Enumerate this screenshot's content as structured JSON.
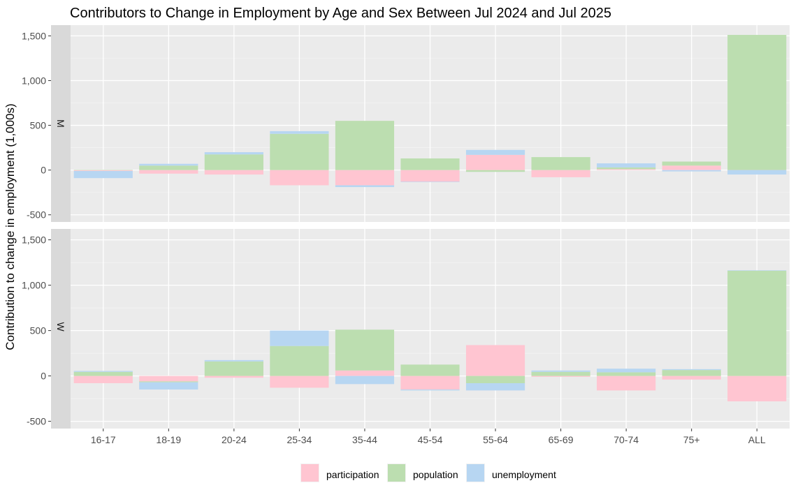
{
  "chart_data": {
    "type": "bar",
    "stacked": true,
    "title": "Contributors to Change in Employment by Age and Sex Between Jul 2024 and Jul 2025",
    "ylabel": "Contribution to change in employment (1,000s)",
    "xlabel": "",
    "categories": [
      "16-17",
      "18-19",
      "20-24",
      "25-34",
      "35-44",
      "45-54",
      "55-64",
      "65-69",
      "70-74",
      "75+",
      "ALL"
    ],
    "ylim": [
      -580,
      1620
    ],
    "yticks": [
      -500,
      0,
      500,
      1000,
      1500
    ],
    "ytick_labels": [
      "-500",
      "0",
      "500",
      "1,000",
      "1,500"
    ],
    "grid": true,
    "legend_position": "bottom",
    "legend": [
      "participation",
      "population",
      "unemployment"
    ],
    "colors": {
      "participation": "#ffc5d1",
      "population": "#bcdeb0",
      "unemployment": "#b7d6f2"
    },
    "panels": [
      {
        "label": "M",
        "series": [
          {
            "name": "participation",
            "values": [
              -10,
              -40,
              -50,
              -170,
              -170,
              -130,
              170,
              -80,
              10,
              50,
              1
            ]
          },
          {
            "name": "population",
            "values": [
              2,
              50,
              175,
              405,
              550,
              130,
              -20,
              145,
              20,
              45,
              1510
            ]
          },
          {
            "name": "unemployment",
            "values": [
              -80,
              20,
              25,
              30,
              -20,
              -5,
              55,
              0,
              45,
              -15,
              -50
            ]
          }
        ]
      },
      {
        "label": "W",
        "series": [
          {
            "name": "participation",
            "values": [
              -80,
              -60,
              -20,
              -130,
              60,
              -150,
              340,
              -10,
              -160,
              -40,
              -280
            ]
          },
          {
            "name": "population",
            "values": [
              45,
              -10,
              160,
              330,
              450,
              125,
              -80,
              45,
              40,
              65,
              1160
            ]
          },
          {
            "name": "unemployment",
            "values": [
              10,
              -80,
              15,
              170,
              -90,
              -10,
              -80,
              15,
              40,
              10,
              5
            ]
          }
        ]
      }
    ]
  }
}
